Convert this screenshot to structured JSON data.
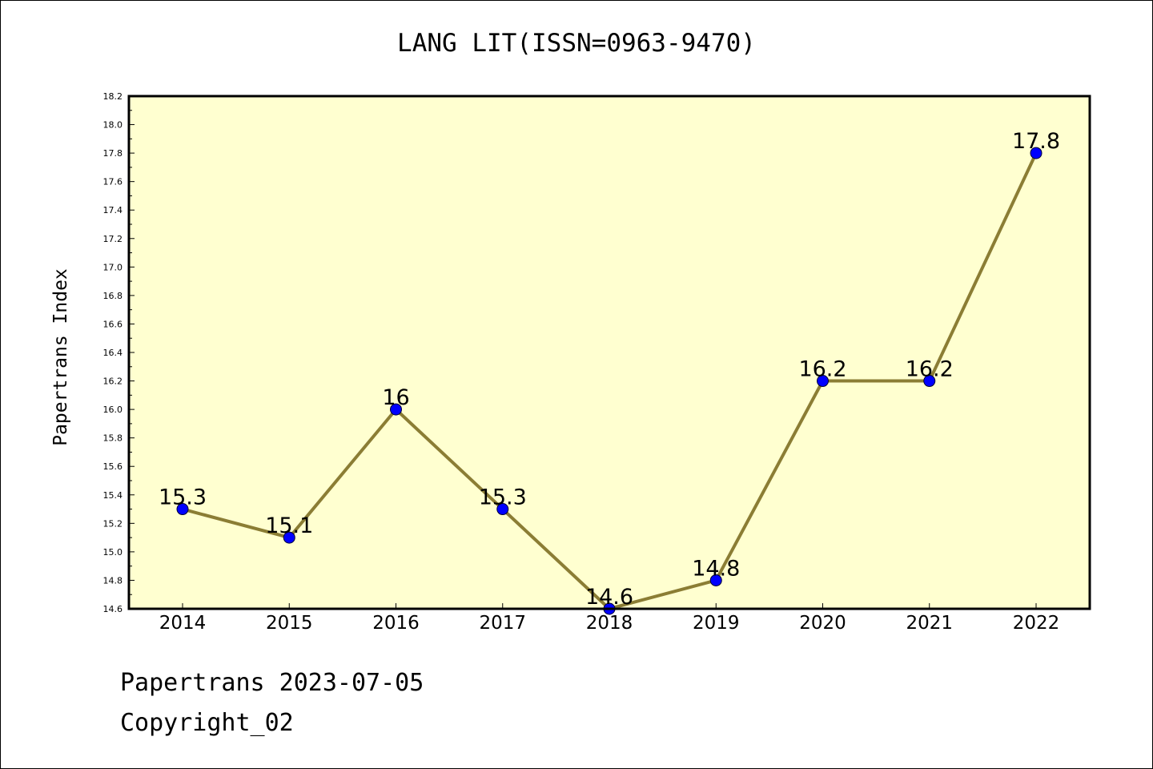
{
  "chart_data": {
    "type": "line",
    "title": "LANG LIT(ISSN=0963-9470)",
    "xlabel": "",
    "ylabel": "Papertrans Index",
    "categories": [
      "2014",
      "2015",
      "2016",
      "2017",
      "2018",
      "2019",
      "2020",
      "2021",
      "2022"
    ],
    "series": [
      {
        "values": [
          15.3,
          15.1,
          16.0,
          15.3,
          14.6,
          14.8,
          16.2,
          16.2,
          17.8
        ],
        "data_labels": [
          "15.3",
          "15.1",
          "16",
          "15.3",
          "14.6",
          "14.8",
          "16.2",
          "16.2",
          "17.8"
        ]
      }
    ],
    "ylim": [
      14.6,
      18.2
    ],
    "yticks": [
      "14.6",
      "14.8",
      "15.0",
      "15.2",
      "15.4",
      "15.6",
      "15.8",
      "16.0",
      "16.2",
      "16.4",
      "16.6",
      "16.8",
      "17.0",
      "17.2",
      "17.4",
      "17.6",
      "17.8",
      "18.0",
      "18.2"
    ],
    "grid": false,
    "legend": "none",
    "colors": {
      "plot_background": "#ffffd0",
      "line": "#8b7d34",
      "marker": "#0000ff"
    }
  },
  "footer": {
    "line1": "Papertrans 2023-07-05",
    "line2": "Copyright_02"
  }
}
